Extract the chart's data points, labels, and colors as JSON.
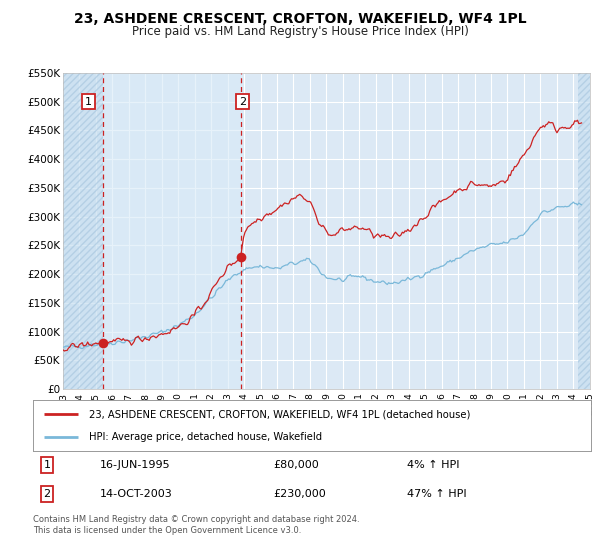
{
  "title": "23, ASHDENE CRESCENT, CROFTON, WAKEFIELD, WF4 1PL",
  "subtitle": "Price paid vs. HM Land Registry's House Price Index (HPI)",
  "legend_line1": "23, ASHDENE CRESCENT, CROFTON, WAKEFIELD, WF4 1PL (detached house)",
  "legend_line2": "HPI: Average price, detached house, Wakefield",
  "sale1_date": "16-JUN-1995",
  "sale1_price": "£80,000",
  "sale1_hpi": "4% ↑ HPI",
  "sale2_date": "14-OCT-2003",
  "sale2_price": "£230,000",
  "sale2_hpi": "47% ↑ HPI",
  "sale1_x": 1995.46,
  "sale1_y": 80000,
  "sale2_x": 2003.79,
  "sale2_y": 230000,
  "vline1_x": 1995.46,
  "vline2_x": 2003.79,
  "xmin": 1993.0,
  "xmax": 2025.0,
  "ymin": 0,
  "ymax": 550000,
  "yticks": [
    0,
    50000,
    100000,
    150000,
    200000,
    250000,
    300000,
    350000,
    400000,
    450000,
    500000,
    550000
  ],
  "ytick_labels": [
    "£0",
    "£50K",
    "£100K",
    "£150K",
    "£200K",
    "£250K",
    "£300K",
    "£350K",
    "£400K",
    "£450K",
    "£500K",
    "£550K"
  ],
  "hpi_color": "#7ab8d9",
  "price_color": "#cc2222",
  "vline_color": "#cc2222",
  "bg_color": "#dce9f5",
  "hatch_color": "#c0d4e8",
  "grid_color": "#ffffff",
  "footer_text": "Contains HM Land Registry data © Crown copyright and database right 2024.\nThis data is licensed under the Open Government Licence v3.0."
}
